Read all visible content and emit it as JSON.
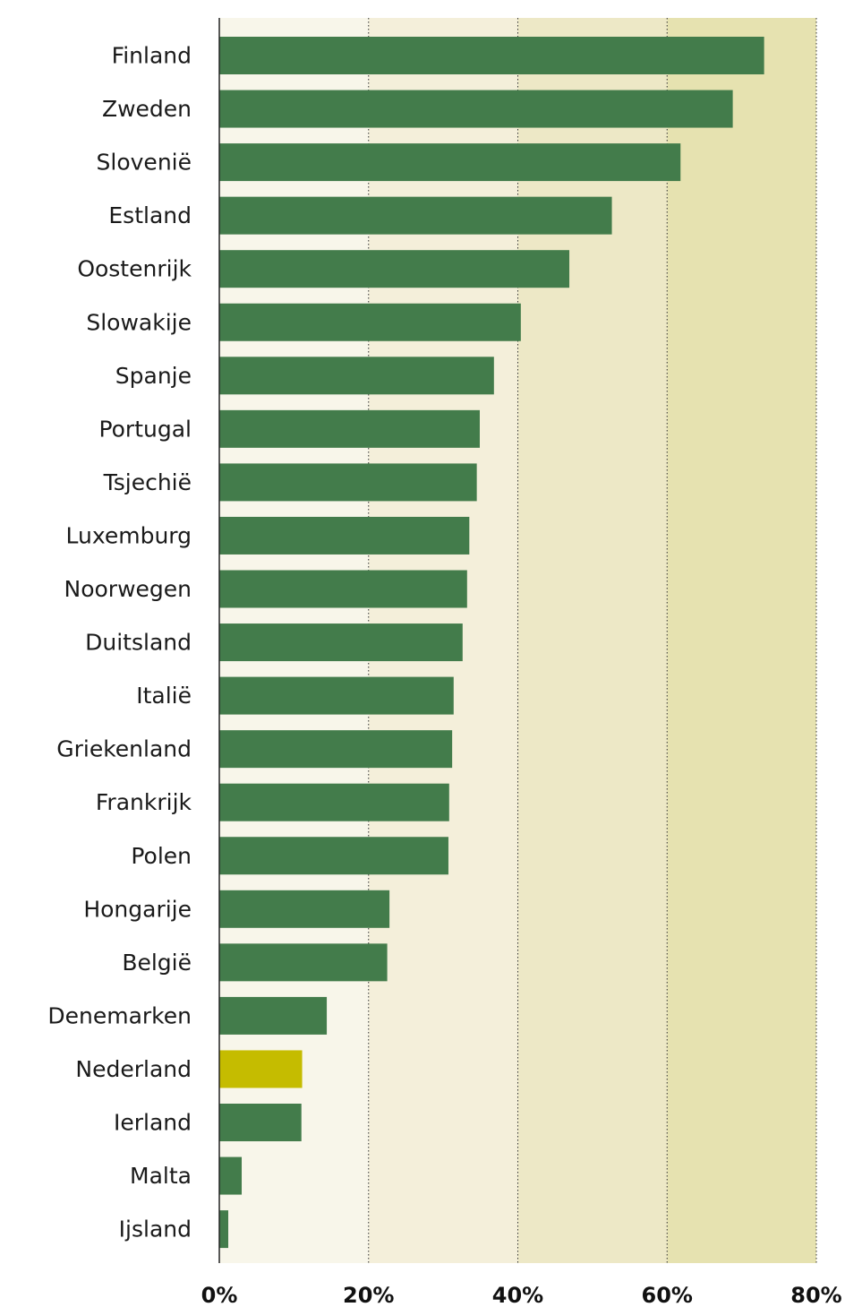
{
  "chart_data": {
    "type": "bar",
    "orientation": "horizontal",
    "categories": [
      "Finland",
      "Zweden",
      "Slovenië",
      "Estland",
      "Oostenrijk",
      "Slowakije",
      "Spanje",
      "Portugal",
      "Tsjechië",
      "Luxemburg",
      "Noorwegen",
      "Duitsland",
      "Italië",
      "Griekenland",
      "Frankrijk",
      "Polen",
      "Hongarije",
      "België",
      "Denemarken",
      "Nederland",
      "Ierland",
      "Malta",
      "Ijsland"
    ],
    "values": [
      73,
      68.8,
      61.8,
      52.6,
      46.9,
      40.4,
      36.8,
      34.9,
      34.5,
      33.5,
      33.2,
      32.6,
      31.4,
      31.2,
      30.8,
      30.7,
      22.8,
      22.5,
      14.4,
      11.1,
      11.0,
      3.0,
      1.2
    ],
    "highlight": "Nederland",
    "xlim": [
      0,
      80
    ],
    "xticks": [
      "0%",
      "20%",
      "40%",
      "60%",
      "80%"
    ],
    "xtick_values": [
      0,
      20,
      40,
      60,
      80
    ],
    "grid": "dotted vertical at each tick",
    "title": "",
    "xlabel": "",
    "ylabel": "",
    "colors": {
      "bar": "#437c4b",
      "highlight": "#c5bc00",
      "band_0_20": "#f8f6ea",
      "band_20_40": "#f4efda",
      "band_40_60": "#ede8c6",
      "band_60_80": "#e6e2b0",
      "axis": "#222222",
      "gridline": "#333333"
    }
  }
}
